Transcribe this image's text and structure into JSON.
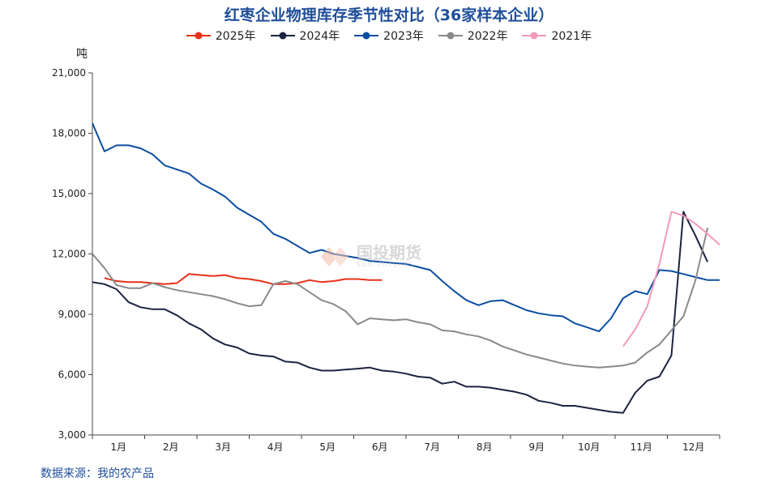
{
  "chart_data": {
    "type": "line",
    "title": "红枣企业物理库存季节性对比（36家样本企业）",
    "ylabel": "吨",
    "source": "数据来源：我的农产品",
    "watermark": {
      "text": "国投期货",
      "sub": "SDIC FUTURES"
    },
    "ylim": [
      3000,
      21000
    ],
    "yticks": [
      3000,
      6000,
      9000,
      12000,
      15000,
      18000,
      21000
    ],
    "ytick_labels": [
      "3,000",
      "6,000",
      "9,000",
      "12,000",
      "15,000",
      "18,000",
      "21,000"
    ],
    "months": [
      "1月",
      "2月",
      "3月",
      "4月",
      "5月",
      "6月",
      "7月",
      "8月",
      "9月",
      "10月",
      "11月",
      "12月"
    ],
    "x_unit": "week",
    "xlim": [
      1,
      53
    ],
    "grid": false,
    "legend_position": "top",
    "series": [
      {
        "name": "2025年",
        "color": "#e8311a",
        "x": [
          2,
          3,
          4,
          5,
          6,
          7,
          8,
          9,
          10,
          11,
          12,
          13,
          14,
          15,
          16,
          17,
          18,
          19,
          20,
          21,
          22,
          23,
          24,
          25
        ],
        "values": [
          10800,
          10650,
          10600,
          10600,
          10550,
          10500,
          10550,
          11000,
          10950,
          10900,
          10950,
          10800,
          10750,
          10650,
          10500,
          10500,
          10550,
          10700,
          10600,
          10650,
          10750,
          10750,
          10700,
          10700
        ]
      },
      {
        "name": "2024年",
        "color": "#1c2340",
        "x": [
          1,
          2,
          3,
          4,
          5,
          6,
          7,
          8,
          9,
          10,
          11,
          12,
          13,
          14,
          15,
          16,
          17,
          18,
          19,
          20,
          21,
          22,
          23,
          24,
          25,
          26,
          27,
          28,
          29,
          30,
          31,
          32,
          33,
          34,
          35,
          36,
          37,
          38,
          39,
          40,
          41,
          42,
          43,
          44,
          45,
          46,
          47,
          48,
          49,
          50,
          51,
          52
        ],
        "values": [
          10600,
          10500,
          10250,
          9600,
          9350,
          9250,
          9250,
          8950,
          8550,
          8250,
          7800,
          7500,
          7350,
          7050,
          6950,
          6900,
          6650,
          6600,
          6350,
          6200,
          6200,
          6250,
          6300,
          6350,
          6200,
          6150,
          6050,
          5900,
          5850,
          5550,
          5650,
          5400,
          5400,
          5350,
          5250,
          5150,
          5000,
          4700,
          4600,
          4450,
          4450,
          4350,
          4250,
          4150,
          4100,
          5100,
          5700,
          5900,
          6950,
          14100,
          12900,
          11600
        ]
      },
      {
        "name": "2023年",
        "color": "#0b4ea2",
        "x": [
          1,
          2,
          3,
          4,
          5,
          6,
          7,
          8,
          9,
          10,
          11,
          12,
          13,
          14,
          15,
          16,
          17,
          18,
          19,
          20,
          21,
          22,
          23,
          24,
          25,
          26,
          27,
          28,
          29,
          30,
          31,
          32,
          33,
          34,
          35,
          36,
          37,
          38,
          39,
          40,
          41,
          42,
          43,
          44,
          45,
          46,
          47,
          48,
          49,
          50,
          51,
          52,
          53
        ],
        "values": [
          18500,
          17100,
          17400,
          17400,
          17250,
          16950,
          16400,
          16200,
          16000,
          15500,
          15200,
          14850,
          14300,
          13950,
          13600,
          13000,
          12750,
          12400,
          12050,
          12200,
          12000,
          11900,
          11800,
          11650,
          11600,
          11550,
          11500,
          11350,
          11200,
          10650,
          10150,
          9700,
          9450,
          9650,
          9700,
          9450,
          9200,
          9050,
          8950,
          8900,
          8550,
          8350,
          8150,
          8800,
          9800,
          10150,
          10000,
          11200,
          11150,
          11000,
          10850,
          10700,
          10700
        ]
      },
      {
        "name": "2022年",
        "color": "#898989",
        "x": [
          1,
          2,
          3,
          4,
          5,
          6,
          7,
          8,
          9,
          10,
          11,
          12,
          13,
          14,
          15,
          16,
          17,
          18,
          19,
          20,
          21,
          22,
          23,
          24,
          25,
          26,
          27,
          28,
          29,
          30,
          31,
          32,
          33,
          34,
          35,
          36,
          37,
          38,
          39,
          40,
          41,
          42,
          43,
          44,
          45,
          46,
          47,
          48,
          49,
          50,
          51,
          52,
          53
        ],
        "values": [
          12000,
          11300,
          10450,
          10300,
          10300,
          10550,
          10350,
          10200,
          10100,
          10000,
          9900,
          9750,
          9550,
          9400,
          9450,
          10500,
          10650,
          10500,
          10100,
          9700,
          9500,
          9150,
          8500,
          8800,
          8750,
          8700,
          8750,
          8600,
          8500,
          8200,
          8150,
          8000,
          7900,
          7700,
          7400,
          7200,
          7000,
          6850,
          6700,
          6550,
          6450,
          6400,
          6350,
          6400,
          6450,
          6600,
          7100,
          7500,
          8200,
          8900,
          10700,
          13300,
          null
        ]
      },
      {
        "name": "2021年",
        "color": "#f39ab7",
        "x": [
          45,
          46,
          47,
          48,
          49,
          50,
          51,
          52,
          53
        ],
        "values": [
          7400,
          8250,
          9400,
          11500,
          14100,
          13900,
          13500,
          13000,
          12450
        ]
      }
    ]
  }
}
